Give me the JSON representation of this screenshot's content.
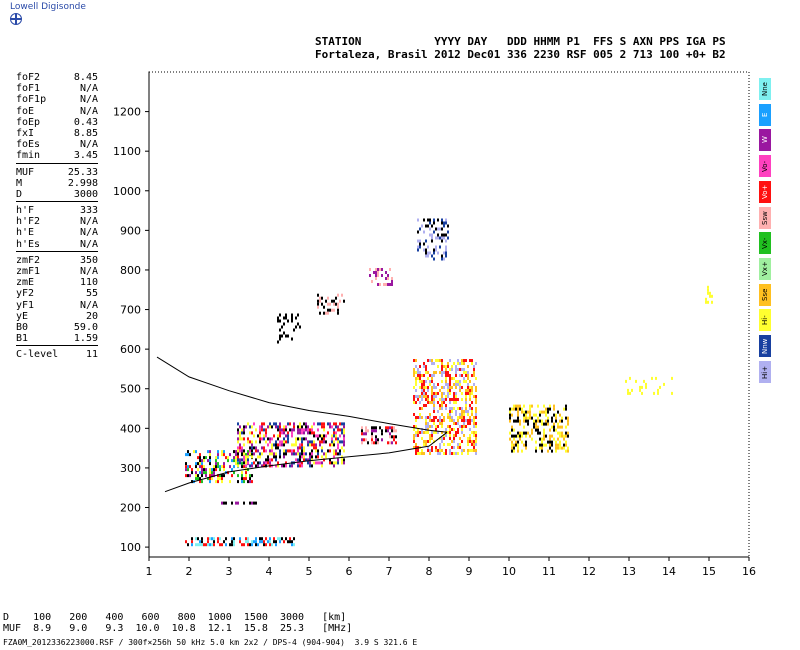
{
  "logo": {
    "text": "Lowell Digisonde"
  },
  "header": {
    "line1": "STATION           YYYY DAY   DDD HHMM P1  FFS S AXN PPS IGA PS",
    "line2": "Fortaleza, Brasil 2012 Dec01 336 2230 RSF 005 2 713 100 +0+ B2"
  },
  "parameters": [
    {
      "k": "foF2",
      "v": "8.45"
    },
    {
      "k": "foF1",
      "v": "N/A"
    },
    {
      "k": "foF1p",
      "v": "N/A"
    },
    {
      "k": "foE",
      "v": "N/A"
    },
    {
      "k": "foEp",
      "v": "0.43"
    },
    {
      "k": "fxI",
      "v": "8.85"
    },
    {
      "k": "foEs",
      "v": "N/A"
    },
    {
      "k": "fmin",
      "v": "3.45"
    },
    {
      "sep": true
    },
    {
      "k": "MUF",
      "v": "25.33"
    },
    {
      "k": "M",
      "v": "2.998"
    },
    {
      "k": "D",
      "v": "3000"
    },
    {
      "sep": true
    },
    {
      "k": "h'F",
      "v": "333"
    },
    {
      "k": "h'F2",
      "v": "N/A"
    },
    {
      "k": "h'E",
      "v": "N/A"
    },
    {
      "k": "h'Es",
      "v": "N/A"
    },
    {
      "sep": true
    },
    {
      "k": "zmF2",
      "v": "350"
    },
    {
      "k": "zmF1",
      "v": "N/A"
    },
    {
      "k": "zmE",
      "v": "110"
    },
    {
      "k": "yF2",
      "v": "55"
    },
    {
      "k": "yF1",
      "v": "N/A"
    },
    {
      "k": "yE",
      "v": "20"
    },
    {
      "k": "B0",
      "v": "59.0"
    },
    {
      "k": "B1",
      "v": "1.59"
    },
    {
      "sep": true
    },
    {
      "k": "C-level",
      "v": "11"
    }
  ],
  "legend": [
    {
      "label": "Nne",
      "color": "#7ff0f0"
    },
    {
      "label": "E",
      "color": "#1aa0ff"
    },
    {
      "label": "W",
      "color": "#9a17a0"
    },
    {
      "label": "Vo-",
      "color": "#ff40c0"
    },
    {
      "label": "Vo+",
      "color": "#ff1010"
    },
    {
      "label": "Ssw",
      "color": "#ffb0b0"
    },
    {
      "label": "Vx-",
      "color": "#20c020"
    },
    {
      "label": "Vx+",
      "color": "#a0f0a0"
    },
    {
      "label": "Sse",
      "color": "#ffc020"
    },
    {
      "label": "Hi-",
      "color": "#ffff30"
    },
    {
      "label": "Nnw",
      "color": "#1840a0"
    },
    {
      "label": "Hi+",
      "color": "#b0b0f0"
    }
  ],
  "footer": {
    "row_d": "D    100   200   400   600   800  1000  1500  3000   [km]",
    "row_muf": "MUF  8.9   9.0   9.3  10.0  10.8  12.1  15.8  25.3   [MHz]",
    "file_line": "FZA0M_2012336223000.RSF / 300f×256h 50 kHz 5.0 km 2x2 / DPS-4 (904-904)  3.9 S 321.6 E"
  },
  "chart_data": {
    "type": "scatter",
    "title": "",
    "xlabel": "",
    "ylabel": "",
    "xlim": [
      1,
      16
    ],
    "ylim": [
      75,
      1300
    ],
    "xticks": [
      1,
      2,
      3,
      4,
      5,
      6,
      7,
      8,
      9,
      10,
      11,
      12,
      13,
      14,
      15,
      16
    ],
    "yticks": [
      100,
      200,
      300,
      400,
      500,
      600,
      700,
      800,
      900,
      1000,
      1100,
      1200
    ],
    "grid": false,
    "legend_position": "right",
    "echo_clusters": [
      {
        "x0": 1.9,
        "x1": 4.7,
        "y0": 105,
        "y1": 125,
        "colors": [
          "#1aa0ff",
          "#7ff0f0",
          "#ff1010",
          "#000000"
        ],
        "density": 0.55
      },
      {
        "x0": 1.9,
        "x1": 3.6,
        "y0": 265,
        "y1": 345,
        "colors": [
          "#000000",
          "#ff1010",
          "#9a17a0",
          "#20c020",
          "#1aa0ff",
          "#ffff30"
        ],
        "density": 0.45
      },
      {
        "x0": 3.2,
        "x1": 5.9,
        "y0": 305,
        "y1": 415,
        "colors": [
          "#000000",
          "#9a17a0",
          "#ff1010",
          "#ffff30",
          "#1840a0",
          "#ff40c0"
        ],
        "density": 0.5
      },
      {
        "x0": 6.3,
        "x1": 7.2,
        "y0": 360,
        "y1": 405,
        "colors": [
          "#ff1010",
          "#9a17a0",
          "#000000",
          "#ffb0b0"
        ],
        "density": 0.5
      },
      {
        "x0": 7.6,
        "x1": 9.2,
        "y0": 335,
        "y1": 575,
        "colors": [
          "#ffff30",
          "#b0b0f0",
          "#ffc020",
          "#ff1010"
        ],
        "density": 0.5
      },
      {
        "x0": 10.0,
        "x1": 11.5,
        "y0": 345,
        "y1": 460,
        "colors": [
          "#ffff30",
          "#ffc020",
          "#000000"
        ],
        "density": 0.4
      },
      {
        "x0": 2.8,
        "x1": 3.7,
        "y0": 210,
        "y1": 215,
        "colors": [
          "#9a17a0",
          "#000000"
        ],
        "density": 0.5
      },
      {
        "x0": 4.2,
        "x1": 4.8,
        "y0": 620,
        "y1": 690,
        "colors": [
          "#000000"
        ],
        "density": 0.3
      },
      {
        "x0": 5.2,
        "x1": 5.9,
        "y0": 690,
        "y1": 740,
        "colors": [
          "#ffb0b0",
          "#000000"
        ],
        "density": 0.35
      },
      {
        "x0": 6.5,
        "x1": 7.1,
        "y0": 765,
        "y1": 805,
        "colors": [
          "#9a17a0",
          "#ffb0b0"
        ],
        "density": 0.35
      },
      {
        "x0": 7.7,
        "x1": 8.5,
        "y0": 830,
        "y1": 930,
        "colors": [
          "#1840a0",
          "#b0b0f0",
          "#000000"
        ],
        "density": 0.35
      },
      {
        "x0": 12.9,
        "x1": 14.1,
        "y0": 490,
        "y1": 530,
        "colors": [
          "#ffff30"
        ],
        "density": 0.15
      },
      {
        "x0": 14.9,
        "x1": 15.1,
        "y0": 720,
        "y1": 760,
        "colors": [
          "#ffff30"
        ],
        "density": 0.3
      }
    ],
    "profile_curves": [
      {
        "points": [
          [
            1.2,
            580
          ],
          [
            2.0,
            530
          ],
          [
            3.0,
            495
          ],
          [
            4.0,
            465
          ],
          [
            5.0,
            445
          ],
          [
            6.0,
            430
          ],
          [
            7.0,
            412
          ],
          [
            8.0,
            395
          ],
          [
            8.45,
            390
          ]
        ]
      },
      {
        "points": [
          [
            1.4,
            240
          ],
          [
            2.0,
            262
          ],
          [
            3.0,
            290
          ],
          [
            4.0,
            305
          ],
          [
            5.0,
            318
          ],
          [
            6.0,
            328
          ],
          [
            7.0,
            338
          ],
          [
            8.0,
            355
          ],
          [
            8.45,
            390
          ]
        ]
      }
    ]
  }
}
